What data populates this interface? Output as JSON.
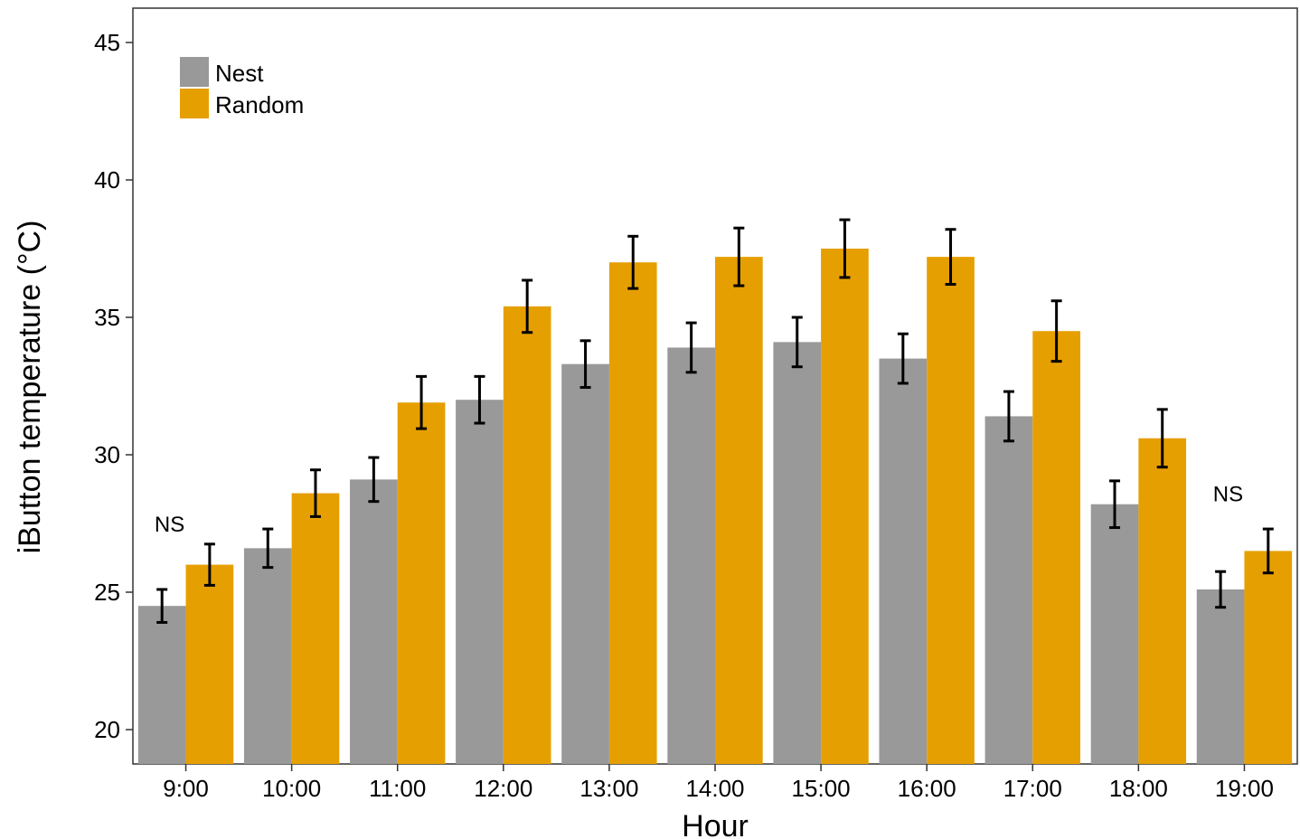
{
  "chart_data": {
    "type": "bar",
    "title": "",
    "xlabel": "Hour",
    "ylabel": "iButton temperature (°C)",
    "ylim": [
      18.75,
      46.25
    ],
    "yticks": [
      20,
      25,
      30,
      35,
      40,
      45
    ],
    "categories": [
      "9:00",
      "10:00",
      "11:00",
      "12:00",
      "13:00",
      "14:00",
      "15:00",
      "16:00",
      "17:00",
      "18:00",
      "19:00"
    ],
    "series": [
      {
        "name": "Nest",
        "color": "#999999",
        "values": [
          24.5,
          26.6,
          29.1,
          32.0,
          33.3,
          33.9,
          34.1,
          33.5,
          31.4,
          28.2,
          25.1
        ],
        "error": [
          0.6,
          0.7,
          0.8,
          0.85,
          0.85,
          0.9,
          0.9,
          0.9,
          0.9,
          0.85,
          0.65
        ]
      },
      {
        "name": "Random",
        "color": "#E69F00",
        "values": [
          26.0,
          28.6,
          31.9,
          35.4,
          37.0,
          37.2,
          37.5,
          37.2,
          34.5,
          30.6,
          26.5
        ],
        "error": [
          0.75,
          0.85,
          0.95,
          0.95,
          0.95,
          1.05,
          1.05,
          1.0,
          1.1,
          1.05,
          0.8
        ]
      }
    ],
    "annotations": [
      {
        "category": "9:00",
        "text": "NS",
        "y": 27.2
      },
      {
        "category": "19:00",
        "text": "NS",
        "y": 28.3
      }
    ],
    "legend": {
      "position": "top-left",
      "entries": [
        "Nest",
        "Random"
      ]
    },
    "grid": false
  }
}
